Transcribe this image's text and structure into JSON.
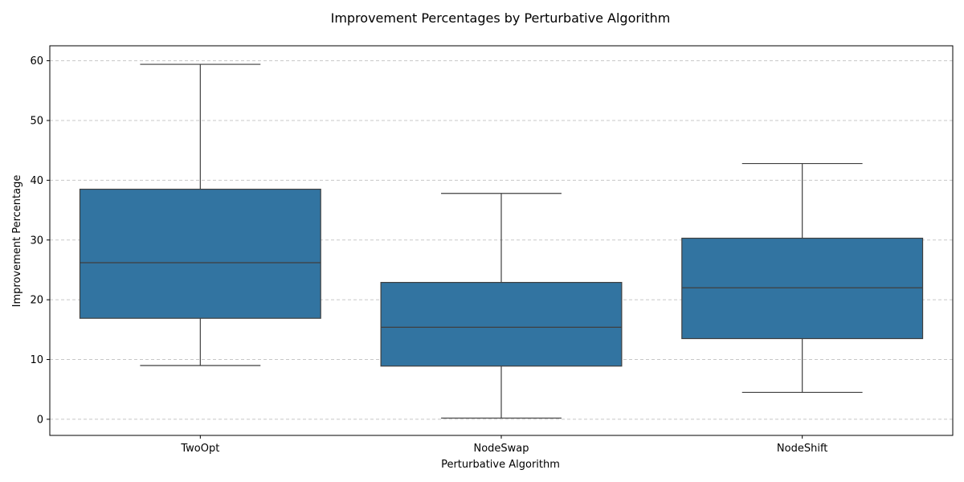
{
  "chart_data": {
    "type": "box",
    "title": "Improvement Percentages by Perturbative Algorithm",
    "xlabel": "Perturbative Algorithm",
    "ylabel": "Improvement Percentage",
    "ylim": [
      -2.7,
      62.5
    ],
    "yticks": [
      0,
      10,
      20,
      30,
      40,
      50,
      60
    ],
    "grid": "y-dashed",
    "box_color": "#3274a1",
    "line_color": "#3f3f3f",
    "grid_color": "#c8c8c8",
    "categories": [
      "TwoOpt",
      "NodeSwap",
      "NodeShift"
    ],
    "boxes": [
      {
        "category": "TwoOpt",
        "whisker_low": 9.0,
        "q1": 16.9,
        "median": 26.2,
        "q3": 38.5,
        "whisker_high": 59.4
      },
      {
        "category": "NodeSwap",
        "whisker_low": 0.2,
        "q1": 8.9,
        "median": 15.4,
        "q3": 22.9,
        "whisker_high": 37.8
      },
      {
        "category": "NodeShift",
        "whisker_low": 4.5,
        "q1": 13.5,
        "median": 22.0,
        "q3": 30.3,
        "whisker_high": 42.8
      }
    ]
  }
}
